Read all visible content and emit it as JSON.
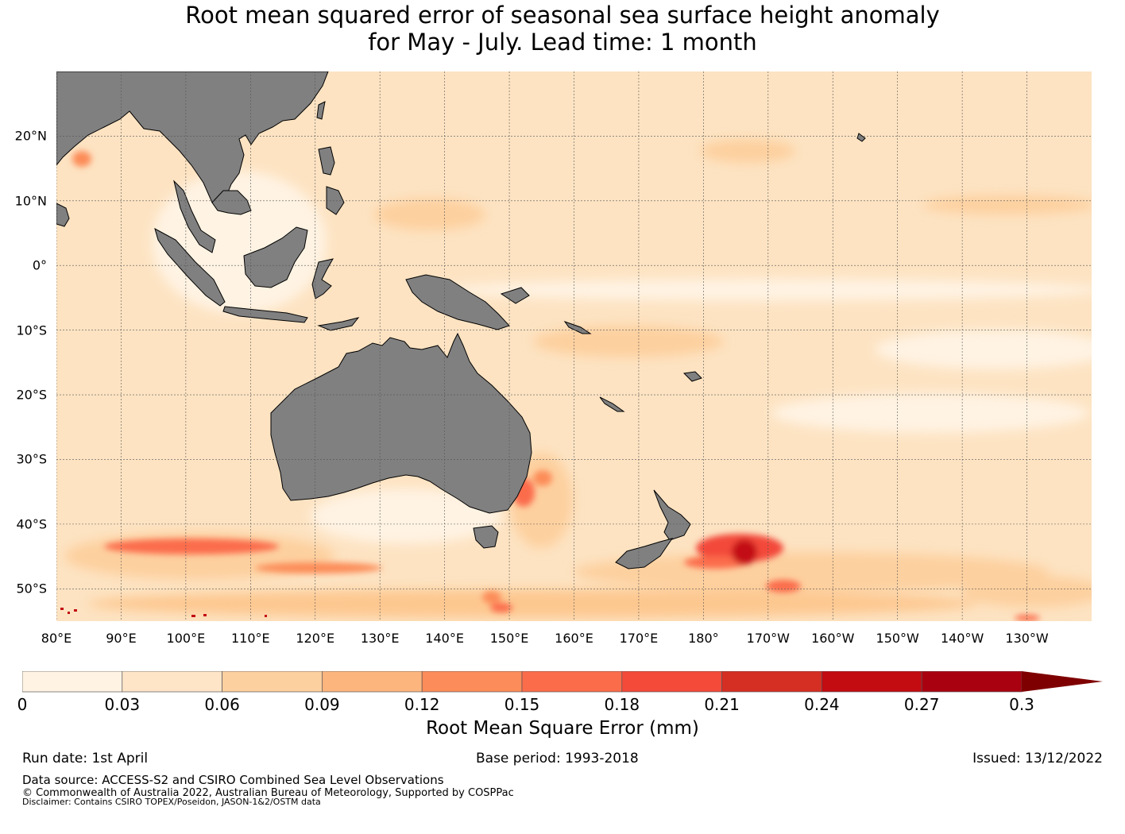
{
  "title": {
    "line1": "Root mean squared error of seasonal sea surface height anomaly",
    "line2": "for May - July. Lead time: 1 month"
  },
  "map": {
    "lon_range": [
      80,
      240
    ],
    "lat_range": [
      -55,
      30
    ],
    "land_color": "#808080",
    "ocean_base_color": "#fde3c2",
    "lat_labels": [
      {
        "lat": 20,
        "text": "20°N"
      },
      {
        "lat": 10,
        "text": "10°N"
      },
      {
        "lat": 0,
        "text": "0°"
      },
      {
        "lat": -10,
        "text": "10°S"
      },
      {
        "lat": -20,
        "text": "20°S"
      },
      {
        "lat": -30,
        "text": "30°S"
      },
      {
        "lat": -40,
        "text": "40°S"
      },
      {
        "lat": -50,
        "text": "50°S"
      }
    ],
    "lon_labels": [
      {
        "lon": 80,
        "text": "80°E"
      },
      {
        "lon": 90,
        "text": "90°E"
      },
      {
        "lon": 100,
        "text": "100°E"
      },
      {
        "lon": 110,
        "text": "110°E"
      },
      {
        "lon": 120,
        "text": "120°E"
      },
      {
        "lon": 130,
        "text": "130°E"
      },
      {
        "lon": 140,
        "text": "140°E"
      },
      {
        "lon": 150,
        "text": "150°E"
      },
      {
        "lon": 160,
        "text": "160°E"
      },
      {
        "lon": 170,
        "text": "170°E"
      },
      {
        "lon": 180,
        "text": "180°"
      },
      {
        "lon": 190,
        "text": "170°W"
      },
      {
        "lon": 200,
        "text": "160°W"
      },
      {
        "lon": 210,
        "text": "150°W"
      },
      {
        "lon": 220,
        "text": "140°W"
      },
      {
        "lon": 230,
        "text": "130°W"
      }
    ]
  },
  "colorbar": {
    "colors": [
      "#fff3e3",
      "#fee5c8",
      "#fdd09f",
      "#fdb57e",
      "#fc8c59",
      "#fb6c4b",
      "#f34a3a",
      "#d52e23",
      "#c30b12",
      "#a90110",
      "#7f0000"
    ],
    "ticks": [
      "0",
      "0.03",
      "0.06",
      "0.09",
      "0.12",
      "0.15",
      "0.18",
      "0.21",
      "0.24",
      "0.27",
      "0.3"
    ],
    "label": "Root Mean Square Error (mm)"
  },
  "footer": {
    "run_date": "Run date: 1st April",
    "base_period": "Base period: 1993-2018",
    "issued": "Issued: 13/12/2022",
    "data_source": "Data source: ACCESS-S2 and CSIRO Combined Sea Level Observations",
    "copyright": "© Commonwealth of Australia 2022, Australian Bureau of Meteorology, Supported by COSPPac",
    "disclaimer": "Disclaimer: Contains CSIRO TOPEX/Poseidon, JASON-1&2/OSTM data"
  }
}
